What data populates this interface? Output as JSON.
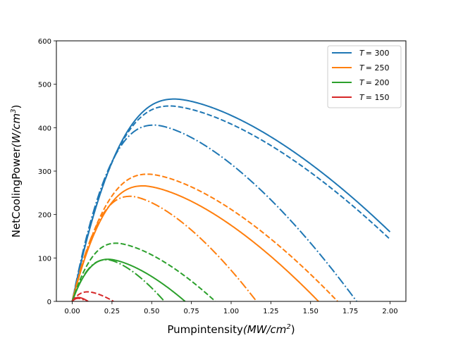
{
  "chart_data": {
    "type": "line",
    "xlabel": "Pumpintensity",
    "xlabel_unit": "(MW/cm",
    "xlabel_unit_sup": "2",
    "xlabel_unit_close": ")",
    "ylabel": "NetCoolingPower",
    "ylabel_unit": "(W/cm",
    "ylabel_unit_sup": "3",
    "ylabel_unit_close": ")",
    "xlim": [
      -0.1,
      2.1
    ],
    "ylim": [
      0,
      600
    ],
    "xticks": [
      0.0,
      0.25,
      0.5,
      0.75,
      1.0,
      1.25,
      1.5,
      1.75,
      2.0
    ],
    "xtick_labels": [
      "0.00",
      "0.25",
      "0.50",
      "0.75",
      "1.00",
      "1.25",
      "1.50",
      "1.75",
      "2.00"
    ],
    "yticks": [
      0,
      100,
      200,
      300,
      400,
      500,
      600
    ],
    "ytick_labels": [
      "0",
      "100",
      "200",
      "300",
      "400",
      "500",
      "600"
    ],
    "grid": false,
    "legend_position": "top-right",
    "legend": [
      {
        "var": "T",
        "eq": "= 300",
        "color": "#1f77b4"
      },
      {
        "var": "T",
        "eq": "= 250",
        "color": "#ff7f0e"
      },
      {
        "var": "T",
        "eq": "= 200",
        "color": "#2ca02c"
      },
      {
        "var": "T",
        "eq": "= 150",
        "color": "#d62728"
      }
    ],
    "series": [
      {
        "color": "#1f77b4",
        "style": "solid",
        "peak": [
          0.65,
          466
        ],
        "end": [
          2.0,
          160
        ]
      },
      {
        "color": "#1f77b4",
        "style": "dashed",
        "peak": [
          0.62,
          450
        ],
        "end": [
          2.0,
          143
        ]
      },
      {
        "color": "#1f77b4",
        "style": "dashdot",
        "peak": [
          0.52,
          406
        ],
        "end": [
          1.79,
          0
        ]
      },
      {
        "color": "#ff7f0e",
        "style": "solid",
        "peak": [
          0.45,
          266
        ],
        "end": [
          1.55,
          0
        ]
      },
      {
        "color": "#ff7f0e",
        "style": "dashed",
        "peak": [
          0.48,
          293
        ],
        "end": [
          1.67,
          0
        ]
      },
      {
        "color": "#ff7f0e",
        "style": "dashdot",
        "peak": [
          0.37,
          242
        ],
        "end": [
          1.16,
          0
        ]
      },
      {
        "color": "#2ca02c",
        "style": "solid",
        "peak": [
          0.23,
          97
        ],
        "end": [
          0.71,
          0
        ]
      },
      {
        "color": "#2ca02c",
        "style": "dashed",
        "peak": [
          0.28,
          134
        ],
        "end": [
          0.9,
          0
        ]
      },
      {
        "color": "#2ca02c",
        "style": "dashdot",
        "peak": [
          0.22,
          96
        ],
        "end": [
          0.58,
          0
        ]
      },
      {
        "color": "#d62728",
        "style": "solid",
        "peak": [
          0.04,
          9
        ],
        "end": [
          0.1,
          0
        ]
      },
      {
        "color": "#d62728",
        "style": "dashed",
        "peak": [
          0.1,
          22
        ],
        "end": [
          0.26,
          0
        ]
      },
      {
        "color": "#d62728",
        "style": "dashdot",
        "peak": [
          0.04,
          7
        ],
        "end": [
          0.09,
          0
        ]
      }
    ]
  }
}
